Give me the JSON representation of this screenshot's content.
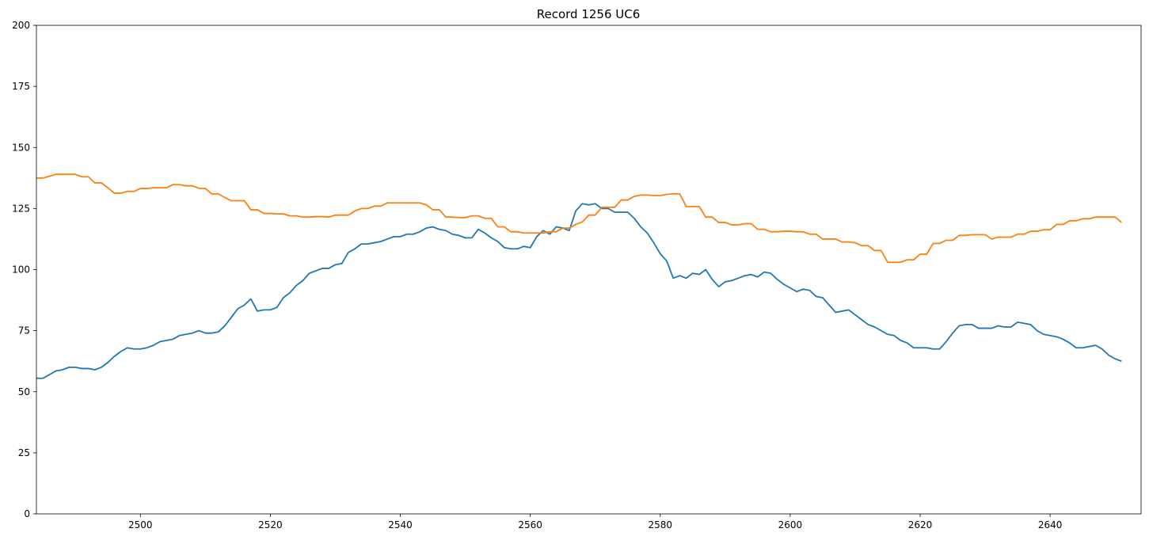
{
  "chart_data": {
    "type": "line",
    "title": "Record 1256 UC6",
    "xlabel": "",
    "ylabel": "",
    "xlim": [
      2484,
      2654
    ],
    "ylim": [
      0,
      200
    ],
    "x_ticks": [
      2500,
      2520,
      2540,
      2560,
      2580,
      2600,
      2620,
      2640
    ],
    "y_ticks": [
      0,
      25,
      50,
      75,
      100,
      125,
      150,
      175,
      200
    ],
    "grid": false,
    "legend": "none",
    "series": [
      {
        "color": "#1f77b4",
        "x": [
          2484,
          2485,
          2486,
          2487,
          2488,
          2489,
          2490,
          2491,
          2492,
          2493,
          2494,
          2495,
          2496,
          2497,
          2498,
          2499,
          2500,
          2501,
          2502,
          2503,
          2504,
          2505,
          2506,
          2507,
          2508,
          2509,
          2510,
          2511,
          2512,
          2513,
          2514,
          2515,
          2516,
          2517,
          2518,
          2519,
          2520,
          2521,
          2522,
          2523,
          2524,
          2525,
          2526,
          2527,
          2528,
          2529,
          2530,
          2531,
          2532,
          2533,
          2534,
          2535,
          2536,
          2537,
          2538,
          2539,
          2540,
          2541,
          2542,
          2543,
          2544,
          2545,
          2546,
          2547,
          2548,
          2549,
          2550,
          2551,
          2552,
          2553,
          2554,
          2555,
          2556,
          2557,
          2558,
          2559,
          2560,
          2561,
          2562,
          2563,
          2564,
          2565,
          2566,
          2567,
          2568,
          2569,
          2570,
          2571,
          2572,
          2573,
          2574,
          2575,
          2576,
          2577,
          2578,
          2579,
          2580,
          2581,
          2582,
          2583,
          2584,
          2585,
          2586,
          2587,
          2588,
          2589,
          2590,
          2591,
          2592,
          2593,
          2594,
          2595,
          2596,
          2597,
          2598,
          2599,
          2600,
          2601,
          2602,
          2603,
          2604,
          2605,
          2606,
          2607,
          2608,
          2609,
          2610,
          2611,
          2612,
          2613,
          2614,
          2615,
          2616,
          2617,
          2618,
          2619,
          2620,
          2621,
          2622,
          2623,
          2624,
          2625,
          2626,
          2627,
          2628,
          2629,
          2630,
          2631,
          2632,
          2633,
          2634,
          2635,
          2636,
          2637,
          2638,
          2639,
          2640,
          2641,
          2642,
          2643,
          2644,
          2645,
          2646,
          2647,
          2648,
          2649,
          2650,
          2651
        ],
        "y": [
          55.5,
          55.5,
          57,
          58.5,
          59,
          60,
          60,
          59.5,
          59.5,
          59,
          60,
          62,
          64.5,
          66.5,
          68,
          67.5,
          67.5,
          68,
          69,
          70.5,
          71,
          71.5,
          73,
          73.5,
          74,
          75,
          74,
          74,
          74.5,
          77,
          80.5,
          84,
          85.5,
          88,
          83,
          83.5,
          83.5,
          84.5,
          88.5,
          90.5,
          93.5,
          95.5,
          98.5,
          99.5,
          100.5,
          100.5,
          102,
          102.5,
          107,
          108.5,
          110.5,
          110.5,
          111,
          111.5,
          112.5,
          113.5,
          113.5,
          114.5,
          114.5,
          115.5,
          117,
          117.5,
          116.5,
          116,
          114.5,
          114,
          113,
          113,
          116.5,
          115,
          113,
          111.5,
          109,
          108.5,
          108.5,
          109.5,
          109,
          113.5,
          116,
          114.5,
          117.5,
          117,
          116,
          124,
          127,
          126.5,
          127,
          125,
          125,
          123.5,
          123.5,
          123.5,
          121,
          117.5,
          115,
          111,
          106.5,
          103.5,
          96.5,
          97.5,
          96.5,
          98.5,
          98,
          100,
          96,
          93,
          95,
          95.5,
          96.5,
          97.5,
          98,
          97,
          99,
          98.5,
          96,
          94,
          92.5,
          91,
          92,
          91.5,
          89,
          88.5,
          85.5,
          82.5,
          83,
          83.5,
          81.5,
          79.5,
          77.5,
          76.5,
          75,
          73.5,
          73,
          71,
          70,
          68,
          68,
          68,
          67.5,
          67.5,
          70.5,
          74,
          77,
          77.5,
          77.5,
          76,
          76,
          76,
          77,
          76.5,
          76.5,
          78.5,
          78,
          77.5,
          75,
          73.5,
          73,
          72.5,
          71.5,
          70,
          68,
          68,
          68.5,
          69,
          67.5,
          65,
          63.5,
          62.5
        ]
      },
      {
        "color": "#ff7f0e",
        "x": [
          2484,
          2485,
          2486,
          2487,
          2488,
          2489,
          2490,
          2491,
          2492,
          2493,
          2494,
          2495,
          2496,
          2497,
          2498,
          2499,
          2500,
          2501,
          2502,
          2503,
          2504,
          2505,
          2506,
          2507,
          2508,
          2509,
          2510,
          2511,
          2512,
          2513,
          2514,
          2515,
          2516,
          2517,
          2518,
          2519,
          2520,
          2521,
          2522,
          2523,
          2524,
          2525,
          2526,
          2527,
          2528,
          2529,
          2530,
          2531,
          2532,
          2533,
          2534,
          2535,
          2536,
          2537,
          2538,
          2539,
          2540,
          2541,
          2542,
          2543,
          2544,
          2545,
          2546,
          2547,
          2548,
          2549,
          2550,
          2551,
          2552,
          2553,
          2554,
          2555,
          2556,
          2557,
          2558,
          2559,
          2560,
          2561,
          2562,
          2563,
          2564,
          2565,
          2566,
          2567,
          2568,
          2569,
          2570,
          2571,
          2572,
          2573,
          2574,
          2575,
          2576,
          2577,
          2578,
          2579,
          2580,
          2581,
          2582,
          2583,
          2584,
          2585,
          2586,
          2587,
          2588,
          2589,
          2590,
          2591,
          2592,
          2593,
          2594,
          2595,
          2596,
          2597,
          2598,
          2599,
          2600,
          2601,
          2602,
          2603,
          2604,
          2605,
          2606,
          2607,
          2608,
          2609,
          2610,
          2611,
          2612,
          2613,
          2614,
          2615,
          2616,
          2617,
          2618,
          2619,
          2620,
          2621,
          2622,
          2623,
          2624,
          2625,
          2626,
          2627,
          2628,
          2629,
          2630,
          2631,
          2632,
          2633,
          2634,
          2635,
          2636,
          2637,
          2638,
          2639,
          2640,
          2641,
          2642,
          2643,
          2644,
          2645,
          2646,
          2647,
          2648,
          2649,
          2650,
          2651
        ],
        "y": [
          137.5,
          137.5,
          138.2,
          139,
          139,
          139,
          139,
          138,
          138,
          135.5,
          135.5,
          133.5,
          131.3,
          131.3,
          132,
          132,
          133.2,
          133.2,
          133.5,
          133.5,
          133.5,
          134.8,
          134.8,
          134.3,
          134.3,
          133.3,
          133.2,
          131,
          131,
          129.5,
          128.2,
          128.2,
          128.2,
          124.5,
          124.5,
          123,
          123,
          122.8,
          122.8,
          122,
          122,
          121.5,
          121.5,
          121.7,
          121.7,
          121.5,
          122.3,
          122.3,
          122.3,
          124,
          125,
          125,
          126,
          126,
          127.3,
          127.3,
          127.3,
          127.3,
          127.3,
          127.3,
          126.5,
          124.5,
          124.5,
          121.5,
          121.5,
          121.3,
          121.3,
          122,
          122,
          121,
          121,
          117.5,
          117.5,
          115.5,
          115.5,
          115,
          115,
          115,
          115,
          115.5,
          115.5,
          117,
          117,
          118.5,
          119.5,
          122.3,
          122.3,
          125.5,
          125.5,
          125.5,
          128.5,
          128.5,
          130,
          130.5,
          130.5,
          130.3,
          130.3,
          130.8,
          131,
          131,
          125.8,
          125.8,
          125.8,
          121.5,
          121.5,
          119.3,
          119.3,
          118.3,
          118.3,
          118.8,
          118.8,
          116.5,
          116.5,
          115.5,
          115.5,
          115.7,
          115.7,
          115.5,
          115.5,
          114.5,
          114.5,
          112.5,
          112.5,
          112.5,
          111.3,
          111.3,
          111,
          109.8,
          109.8,
          107.8,
          107.8,
          103,
          103,
          103,
          104,
          104,
          106.3,
          106.3,
          110.7,
          110.7,
          112,
          112,
          114,
          114,
          114.3,
          114.3,
          114.3,
          112.5,
          113.3,
          113.3,
          113.3,
          114.5,
          114.5,
          115.7,
          115.7,
          116.3,
          116.3,
          118.5,
          118.5,
          120,
          120,
          120.8,
          120.8,
          121.5,
          121.5,
          121.5,
          121.5,
          119.3
        ]
      }
    ]
  }
}
